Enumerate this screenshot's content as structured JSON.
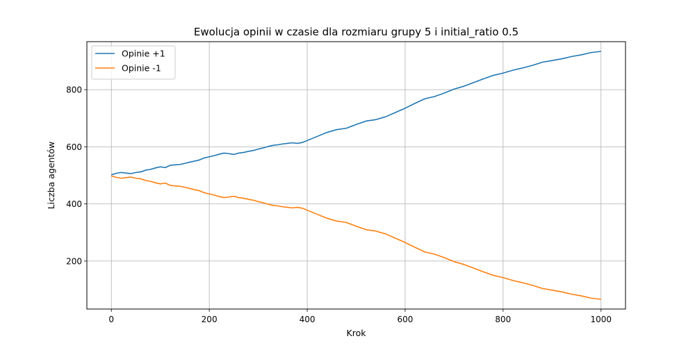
{
  "chart_data": {
    "type": "line",
    "title": "Ewolucja opinii w czasie dla rozmiaru grupy 5 i initial_ratio 0.5",
    "xlabel": "Krok",
    "ylabel": "Liczba agentów",
    "xlim": [
      -50,
      1050
    ],
    "ylim": [
      32,
      968
    ],
    "xticks": [
      0,
      200,
      400,
      600,
      800,
      1000
    ],
    "yticks": [
      200,
      400,
      600,
      800
    ],
    "xtick_labels": [
      "0",
      "200",
      "400",
      "600",
      "800",
      "1000"
    ],
    "ytick_labels": [
      "200",
      "400",
      "600",
      "800"
    ],
    "grid": true,
    "legend_position": "top-left",
    "series": [
      {
        "name": "Opinie +1",
        "color": "#1f77b4",
        "x": [
          0,
          10,
          20,
          30,
          40,
          50,
          60,
          70,
          80,
          90,
          100,
          110,
          120,
          130,
          140,
          150,
          160,
          170,
          180,
          190,
          200,
          210,
          220,
          230,
          240,
          250,
          260,
          270,
          280,
          290,
          300,
          310,
          320,
          330,
          340,
          350,
          360,
          370,
          380,
          390,
          400,
          420,
          440,
          460,
          480,
          500,
          520,
          540,
          560,
          580,
          600,
          620,
          640,
          660,
          680,
          700,
          720,
          740,
          760,
          780,
          800,
          820,
          840,
          860,
          880,
          900,
          920,
          940,
          960,
          980,
          1000
        ],
        "y": [
          502,
          507,
          510,
          508,
          506,
          510,
          512,
          518,
          521,
          526,
          530,
          527,
          535,
          537,
          538,
          542,
          546,
          550,
          554,
          561,
          565,
          569,
          574,
          578,
          576,
          573,
          578,
          580,
          584,
          587,
          592,
          596,
          601,
          605,
          607,
          610,
          612,
          614,
          612,
          615,
          622,
          636,
          650,
          660,
          665,
          678,
          690,
          695,
          705,
          720,
          735,
          752,
          768,
          776,
          788,
          802,
          812,
          825,
          838,
          850,
          858,
          868,
          876,
          885,
          896,
          902,
          908,
          916,
          922,
          930,
          934
        ]
      },
      {
        "name": "Opinie -1",
        "color": "#ff7f0e",
        "x": [
          0,
          10,
          20,
          30,
          40,
          50,
          60,
          70,
          80,
          90,
          100,
          110,
          120,
          130,
          140,
          150,
          160,
          170,
          180,
          190,
          200,
          210,
          220,
          230,
          240,
          250,
          260,
          270,
          280,
          290,
          300,
          310,
          320,
          330,
          340,
          350,
          360,
          370,
          380,
          390,
          400,
          420,
          440,
          460,
          480,
          500,
          520,
          540,
          560,
          580,
          600,
          620,
          640,
          660,
          680,
          700,
          720,
          740,
          760,
          780,
          800,
          820,
          840,
          860,
          880,
          900,
          920,
          940,
          960,
          980,
          1000
        ],
        "y": [
          498,
          493,
          490,
          492,
          494,
          490,
          488,
          482,
          479,
          474,
          470,
          473,
          465,
          463,
          462,
          458,
          454,
          450,
          446,
          439,
          435,
          431,
          426,
          422,
          424,
          427,
          422,
          420,
          416,
          413,
          408,
          404,
          399,
          395,
          393,
          390,
          388,
          386,
          388,
          385,
          378,
          364,
          350,
          340,
          335,
          322,
          310,
          305,
          295,
          280,
          265,
          248,
          232,
          224,
          212,
          198,
          188,
          175,
          162,
          150,
          142,
          132,
          124,
          115,
          104,
          98,
          92,
          84,
          78,
          70,
          66
        ]
      }
    ]
  }
}
